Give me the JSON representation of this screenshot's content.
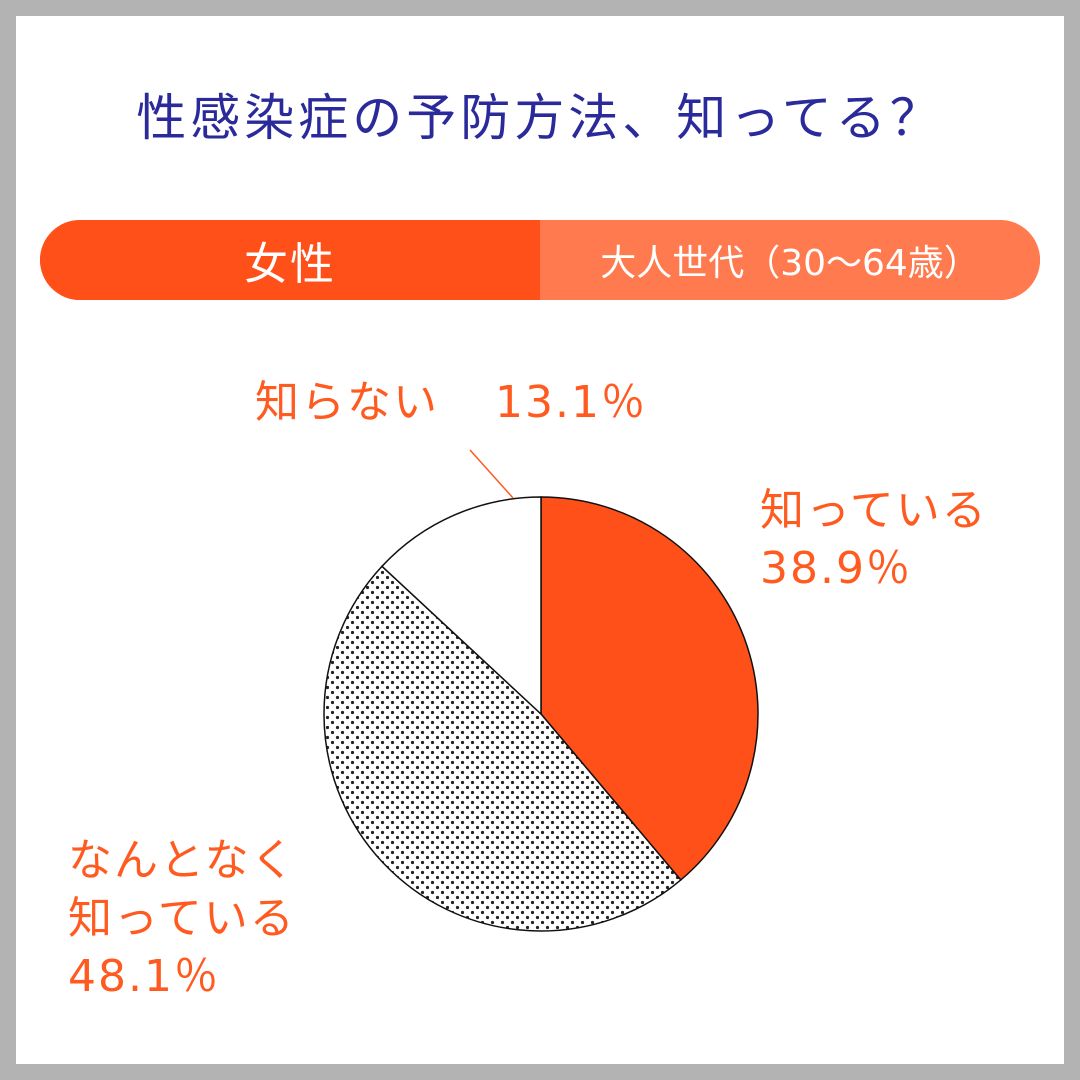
{
  "title": "性感染症の予防方法、知ってる？",
  "segment": {
    "gender": "女性",
    "age_group": "大人世代（30〜64歳）"
  },
  "colors": {
    "background_frame": "#b3b3b3",
    "title": "#2a2a9a",
    "accent": "#ff5a1f",
    "accent_light": "#ff7a4f"
  },
  "chart_data": {
    "type": "pie",
    "title": "性感染症の予防方法、知ってる？",
    "categories": [
      "知っている",
      "なんとなく知っている",
      "知らない"
    ],
    "values": [
      38.9,
      48.1,
      13.1
    ],
    "unit": "%",
    "slices": [
      {
        "label_lines": [
          "知っている"
        ],
        "value_text": "38.9％",
        "fill": "#ff501a"
      },
      {
        "label_lines": [
          "なんとなく",
          "知っている"
        ],
        "value_text": "48.1％",
        "fill": "dots"
      },
      {
        "label_lines": [
          "知らない"
        ],
        "value_text": "13.1％",
        "fill": "#ffffff"
      }
    ]
  }
}
